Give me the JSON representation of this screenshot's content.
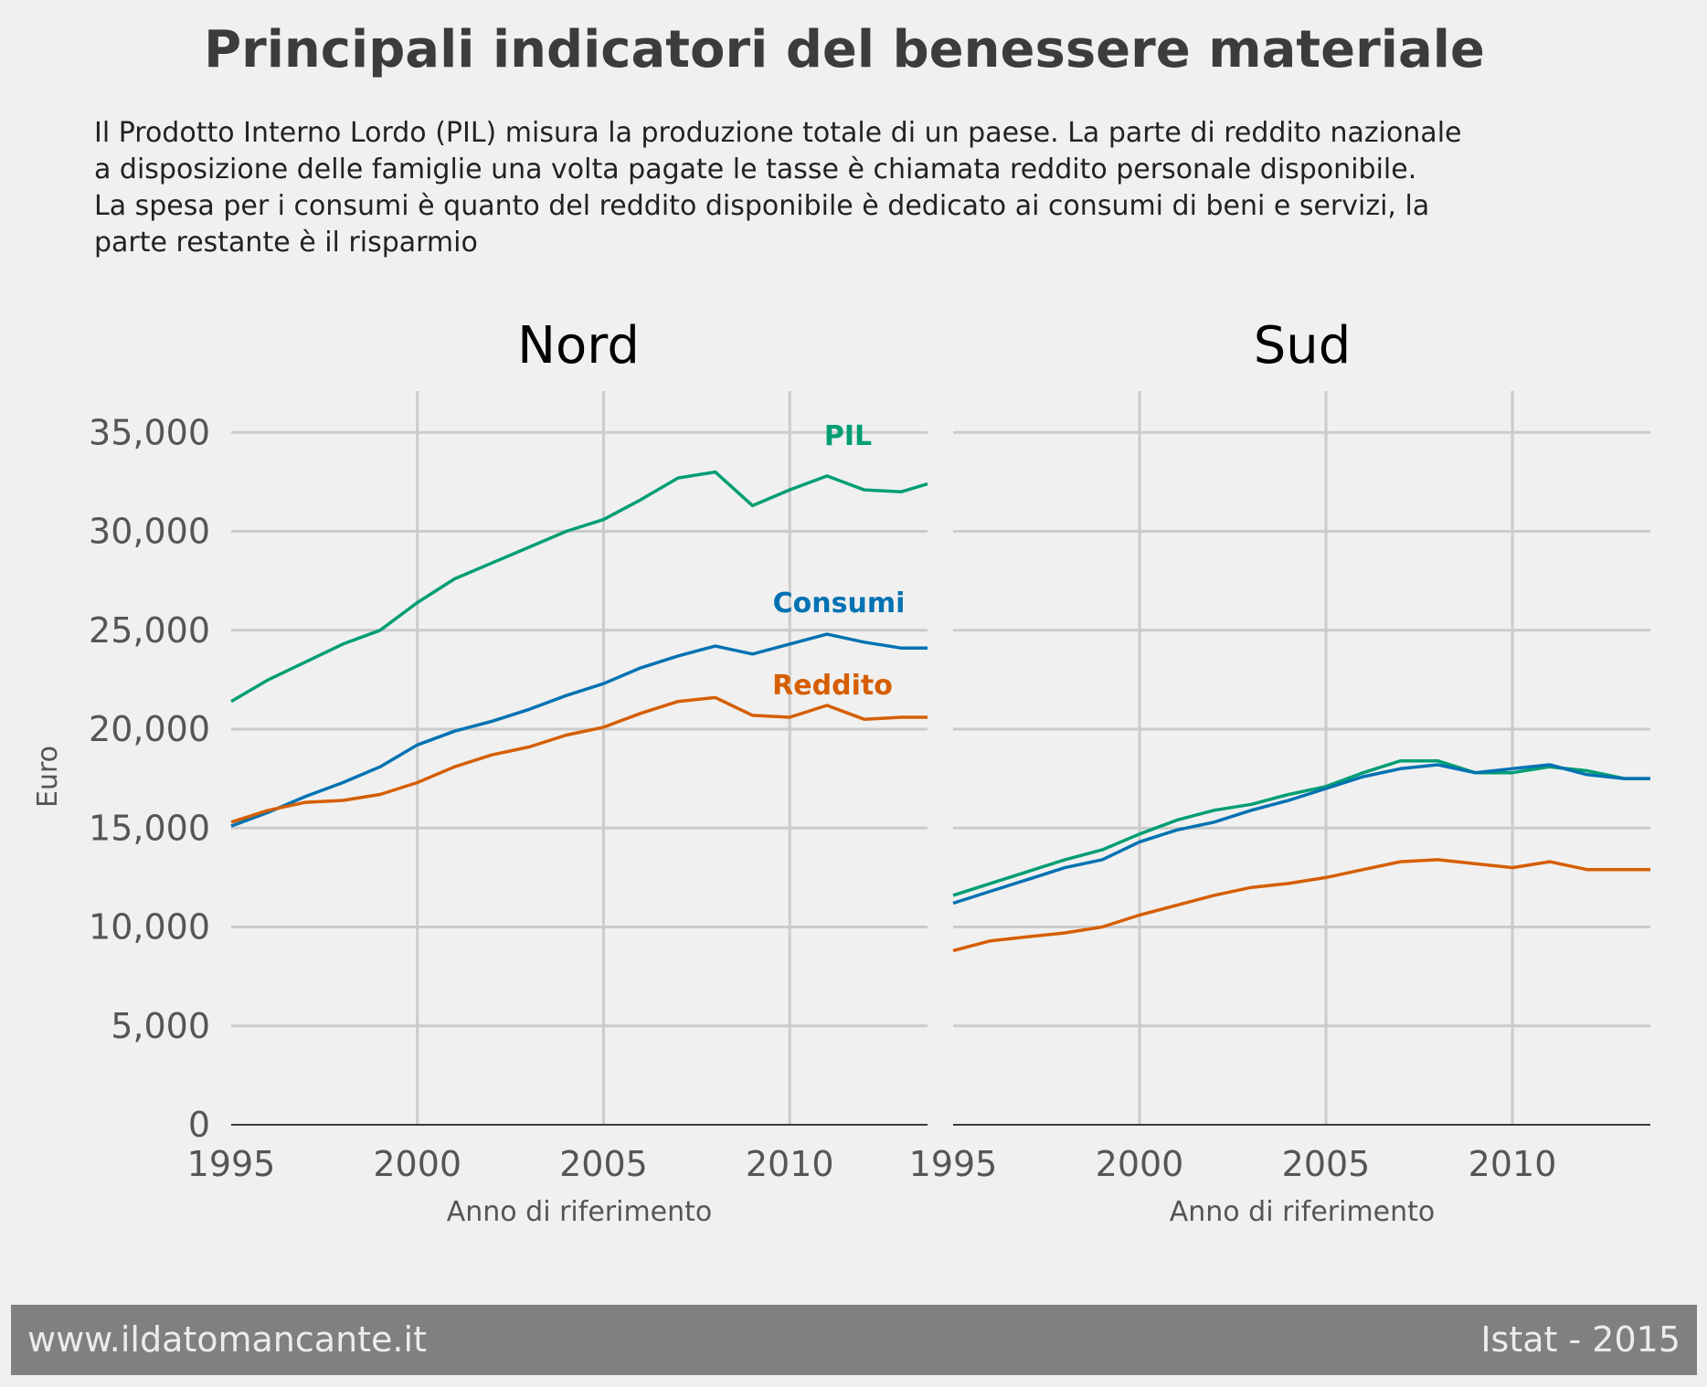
{
  "title": "Principali indicatori del benessere materiale",
  "subtitle": "Il Prodotto Interno Lordo (PIL) misura la produzione totale di un paese. La parte di reddito nazionale a disposizione delle famiglie una volta pagate le tasse è chiamata reddito personale disponibile. La spesa per i consumi è quanto del reddito disponibile è dedicato ai consumi di beni e servizi, la parte restante è il risparmio",
  "subtitle_lines": [
    "Il Prodotto Interno Lordo (PIL) misura la produzione totale di un paese. La parte di reddito nazionale",
    "a disposizione delle famiglie una volta pagate le tasse è chiamata reddito personale disponibile.",
    "La spesa per i consumi è quanto del reddito disponibile è dedicato ai consumi di beni e servizi, la",
    "parte restante è il risparmio"
  ],
  "footer": {
    "left": "www.ildatomancante.it",
    "right": "Istat - 2015"
  },
  "colors": {
    "PIL": "#009e73",
    "Consumi": "#0072b2",
    "Reddito": "#d55e00",
    "background": "#f0f0f0",
    "grid": "#cbcbcb",
    "footer": "#808080"
  },
  "chart_data": [
    {
      "type": "line",
      "title": "Nord",
      "xlabel": "Anno di riferimento",
      "ylabel": "Euro",
      "xlim": [
        1995,
        2013.7
      ],
      "ylim": [
        0,
        37000
      ],
      "x_ticks": [
        1995,
        2000,
        2005,
        2010
      ],
      "x_tick_labels": [
        "1995",
        "2000",
        "2005",
        "2010"
      ],
      "y_ticks": [
        0,
        5000,
        10000,
        15000,
        20000,
        25000,
        30000,
        35000
      ],
      "y_tick_labels": [
        "0",
        "5,000",
        "10,000",
        "15,000",
        "20,000",
        "25,000",
        "30,000",
        "35,000"
      ],
      "grid": true,
      "x": [
        1995,
        1996,
        1997,
        1998,
        1999,
        2000,
        2001,
        2002,
        2003,
        2004,
        2005,
        2006,
        2007,
        2008,
        2009,
        2010,
        2011,
        2012,
        2013,
        2013.7
      ],
      "series": [
        {
          "name": "PIL",
          "label": "PIL",
          "values": [
            21400,
            22500,
            23400,
            24300,
            25000,
            26400,
            27600,
            28400,
            29200,
            30000,
            30600,
            31600,
            32700,
            33000,
            31300,
            32100,
            32800,
            32100,
            32000,
            32400
          ]
        },
        {
          "name": "Consumi",
          "label": "Consumi",
          "values": [
            15100,
            15800,
            16600,
            17300,
            18100,
            19200,
            19900,
            20400,
            21000,
            21700,
            22300,
            23100,
            23700,
            24200,
            23800,
            24300,
            24800,
            24400,
            24100,
            24100
          ]
        },
        {
          "name": "Reddito",
          "label": "Reddito",
          "values": [
            15300,
            15900,
            16300,
            16400,
            16700,
            17300,
            18100,
            18700,
            19100,
            19700,
            20100,
            20800,
            21400,
            21600,
            20700,
            20600,
            21200,
            20500,
            20600,
            20600
          ]
        }
      ]
    },
    {
      "type": "line",
      "title": "Sud",
      "xlabel": "Anno di riferimento",
      "xlim": [
        1995,
        2013.7
      ],
      "ylim": [
        0,
        37000
      ],
      "x_ticks": [
        1995,
        2000,
        2005,
        2010
      ],
      "x_tick_labels": [
        "1995",
        "2000",
        "2005",
        "2010"
      ],
      "grid": true,
      "x": [
        1995,
        1996,
        1997,
        1998,
        1999,
        2000,
        2001,
        2002,
        2003,
        2004,
        2005,
        2006,
        2007,
        2008,
        2009,
        2010,
        2011,
        2012,
        2013,
        2013.7
      ],
      "series": [
        {
          "name": "PIL",
          "values": [
            11600,
            12200,
            12800,
            13400,
            13900,
            14700,
            15400,
            15900,
            16200,
            16700,
            17100,
            17800,
            18400,
            18400,
            17800,
            17800,
            18100,
            17900,
            17500,
            17500
          ]
        },
        {
          "name": "Consumi",
          "values": [
            11200,
            11800,
            12400,
            13000,
            13400,
            14300,
            14900,
            15300,
            15900,
            16400,
            17000,
            17600,
            18000,
            18200,
            17800,
            18000,
            18200,
            17700,
            17500,
            17500
          ]
        },
        {
          "name": "Reddito",
          "values": [
            8800,
            9300,
            9500,
            9700,
            10000,
            10600,
            11100,
            11600,
            12000,
            12200,
            12500,
            12900,
            13300,
            13400,
            13200,
            13000,
            13300,
            12900,
            12900,
            12900
          ]
        }
      ]
    }
  ]
}
